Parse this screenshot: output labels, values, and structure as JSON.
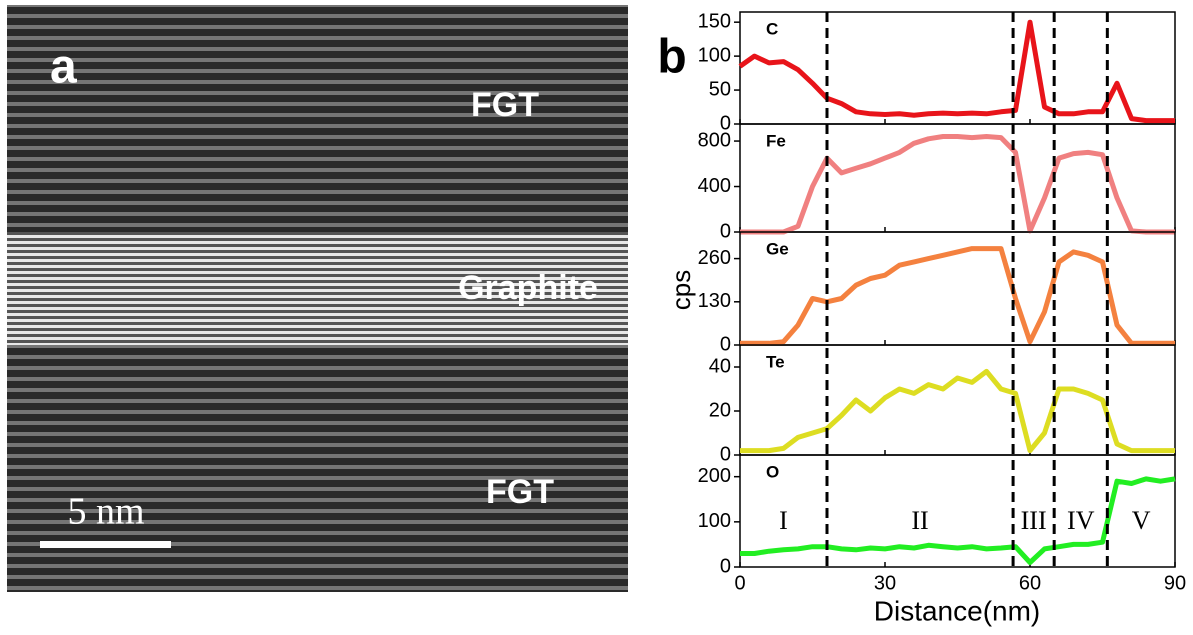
{
  "panel_a": {
    "label": "a",
    "annotations": [
      "FGT",
      "Graphite",
      "FGT"
    ],
    "scale_bar": "5 nm"
  },
  "panel_b": {
    "label": "b",
    "xlabel": "Distance(nm)",
    "ylabel": "cps",
    "boundaries": [
      18,
      56.5,
      65,
      76
    ],
    "regions": [
      "I",
      "II",
      "III",
      "IV",
      "V"
    ]
  },
  "chart_data": [
    {
      "type": "line",
      "x": [
        0,
        3,
        6,
        9,
        12,
        15,
        18,
        21,
        24,
        27,
        30,
        33,
        36,
        39,
        42,
        45,
        48,
        51,
        54,
        57,
        60,
        63,
        66,
        69,
        72,
        75,
        78,
        81,
        84,
        87,
        90
      ],
      "xlim": [
        0,
        90
      ],
      "xticks": [
        0,
        30,
        60,
        90
      ],
      "ylim": [
        0,
        165
      ],
      "yticks": [
        0,
        50,
        100,
        150
      ],
      "series": [
        {
          "name": "C",
          "color": "#e8141a",
          "values": [
            85,
            100,
            90,
            92,
            80,
            60,
            38,
            30,
            18,
            15,
            14,
            15,
            13,
            15,
            16,
            15,
            16,
            15,
            18,
            20,
            150,
            25,
            15,
            15,
            18,
            18,
            60,
            8,
            5,
            5,
            5
          ]
        }
      ]
    },
    {
      "type": "line",
      "x": [
        0,
        3,
        6,
        9,
        12,
        15,
        18,
        21,
        24,
        27,
        30,
        33,
        36,
        39,
        42,
        45,
        48,
        51,
        54,
        57,
        60,
        63,
        66,
        69,
        72,
        75,
        78,
        81,
        84,
        87,
        90
      ],
      "xlim": [
        0,
        90
      ],
      "xticks": [
        0,
        30,
        60,
        90
      ],
      "ylim": [
        0,
        950
      ],
      "yticks": [
        0,
        400,
        800
      ],
      "series": [
        {
          "name": "Fe",
          "color": "#f08080",
          "values": [
            0,
            0,
            0,
            0,
            50,
            400,
            650,
            520,
            560,
            600,
            650,
            700,
            780,
            820,
            840,
            840,
            830,
            840,
            830,
            700,
            10,
            300,
            650,
            690,
            700,
            680,
            300,
            10,
            0,
            0,
            0
          ]
        }
      ]
    },
    {
      "type": "line",
      "x": [
        0,
        3,
        6,
        9,
        12,
        15,
        18,
        21,
        24,
        27,
        30,
        33,
        36,
        39,
        42,
        45,
        48,
        51,
        54,
        57,
        60,
        63,
        66,
        69,
        72,
        75,
        78,
        81,
        84,
        87,
        90
      ],
      "xlim": [
        0,
        90
      ],
      "xticks": [
        0,
        30,
        60,
        90
      ],
      "ylim": [
        0,
        340
      ],
      "yticks": [
        0,
        130,
        260
      ],
      "series": [
        {
          "name": "Ge",
          "color": "#f4813f",
          "values": [
            5,
            5,
            5,
            10,
            60,
            140,
            130,
            140,
            180,
            200,
            210,
            240,
            250,
            260,
            270,
            280,
            290,
            290,
            290,
            140,
            10,
            100,
            250,
            280,
            270,
            250,
            60,
            5,
            5,
            5,
            5
          ]
        }
      ]
    },
    {
      "type": "line",
      "x": [
        0,
        3,
        6,
        9,
        12,
        15,
        18,
        21,
        24,
        27,
        30,
        33,
        36,
        39,
        42,
        45,
        48,
        51,
        54,
        57,
        60,
        63,
        66,
        69,
        72,
        75,
        78,
        81,
        84,
        87,
        90
      ],
      "xlim": [
        0,
        90
      ],
      "xticks": [
        0,
        30,
        60,
        90
      ],
      "ylim": [
        0,
        50
      ],
      "yticks": [
        0,
        20,
        40
      ],
      "series": [
        {
          "name": "Te",
          "color": "#dddd22",
          "values": [
            2,
            2,
            2,
            3,
            8,
            10,
            12,
            18,
            25,
            20,
            26,
            30,
            28,
            32,
            30,
            35,
            33,
            38,
            30,
            28,
            2,
            10,
            30,
            30,
            28,
            25,
            5,
            2,
            2,
            2,
            2
          ]
        }
      ]
    },
    {
      "type": "line",
      "x": [
        0,
        3,
        6,
        9,
        12,
        15,
        18,
        21,
        24,
        27,
        30,
        33,
        36,
        39,
        42,
        45,
        48,
        51,
        54,
        57,
        60,
        63,
        66,
        69,
        72,
        75,
        78,
        81,
        84,
        87,
        90
      ],
      "xlim": [
        0,
        90
      ],
      "xticks": [
        0,
        30,
        60,
        90
      ],
      "ylim": [
        0,
        248
      ],
      "yticks": [
        0,
        100,
        200
      ],
      "series": [
        {
          "name": "O",
          "color": "#22ee22",
          "values": [
            30,
            30,
            35,
            38,
            40,
            45,
            45,
            40,
            38,
            42,
            40,
            45,
            42,
            48,
            45,
            42,
            45,
            40,
            42,
            45,
            10,
            40,
            45,
            50,
            50,
            55,
            190,
            185,
            195,
            190,
            195
          ]
        }
      ]
    }
  ]
}
